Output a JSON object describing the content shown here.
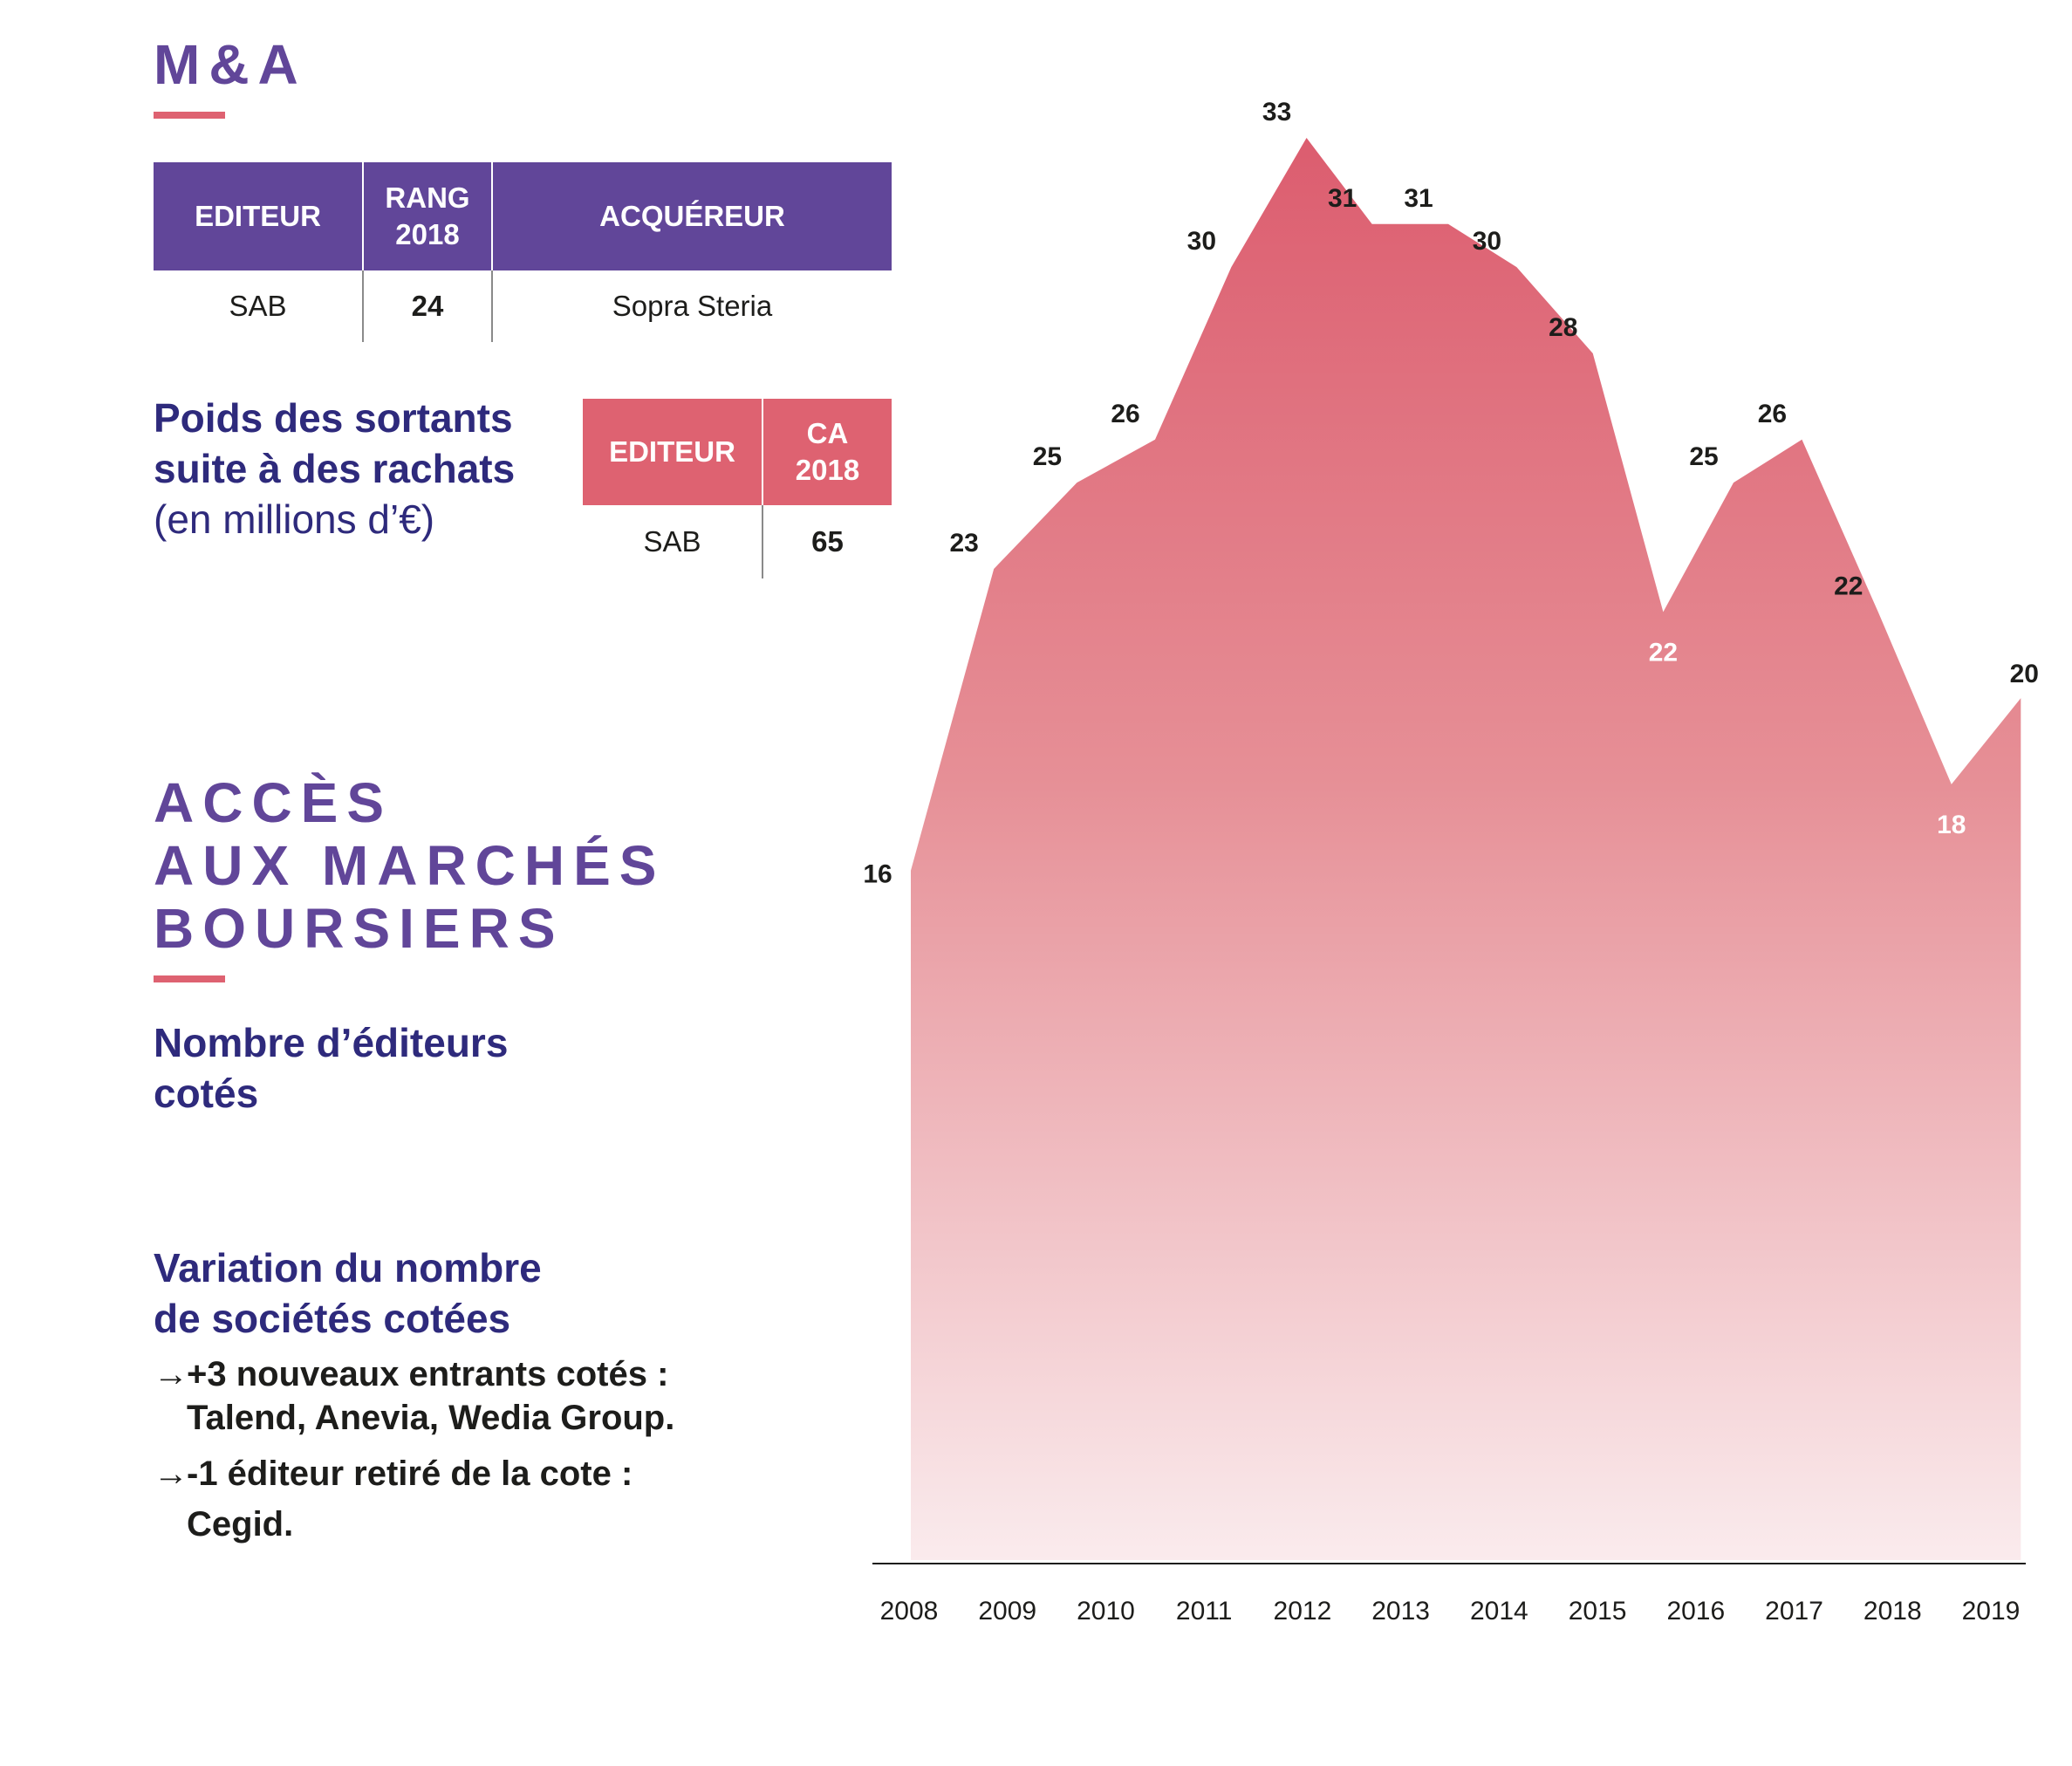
{
  "ma": {
    "title": "M&A",
    "table": {
      "headers": [
        "EDITEUR",
        "RANG 2018",
        "ACQUÉREUR"
      ],
      "row": [
        "SAB",
        "24",
        "Sopra Steria"
      ]
    }
  },
  "poids": {
    "title_line1": "Poids des sortants",
    "title_line2": "suite à des rachats",
    "unit": "(en millions d’€)",
    "table": {
      "headers": [
        "EDITEUR",
        "CA 2018"
      ],
      "row": [
        "SAB",
        "65"
      ]
    }
  },
  "acces": {
    "title_line1": "ACCÈS",
    "title_line2": "AUX MARCHÉS",
    "title_line3": "BOURSIERS",
    "subtitle_line1": "Nombre d’éditeurs",
    "subtitle_line2": "cotés"
  },
  "variation": {
    "title_line1": "Variation du nombre",
    "title_line2": "de sociétés cotées",
    "bullets": [
      {
        "arrow": "→",
        "line1": "+3 nouveaux entrants cotés :",
        "line2": "Talend, Anevia, Wedia Group."
      },
      {
        "arrow": "→",
        "line1": "-1 éditeur retiré de la cote :",
        "line2": "Cegid."
      }
    ]
  },
  "chart_data": {
    "type": "area",
    "categories": [
      "2008",
      "2009",
      "2010",
      "2011",
      "2012",
      "2013",
      "2014",
      "2015",
      "2016",
      "2017",
      "2018",
      "2019"
    ],
    "x": [
      0,
      0.85,
      1.7,
      2.5,
      3.28,
      4.05,
      4.72,
      5.5,
      6.2,
      6.98,
      7.7,
      8.42,
      9.12,
      9.9,
      10.65,
      11.36
    ],
    "values": [
      16,
      23,
      25,
      26,
      30,
      33,
      31,
      31,
      30,
      28,
      22,
      25,
      26,
      22,
      18,
      20
    ],
    "labels": [
      "16",
      "23",
      "25",
      "26",
      "30",
      "33",
      "31",
      "31",
      "30",
      "28",
      "22",
      "25",
      "26",
      "22",
      "18",
      "20"
    ],
    "ylim": [
      0,
      33
    ],
    "colors": {
      "top": "#dc5d6f",
      "bottom": "#faebed",
      "axis": "#1d1d1b",
      "label": "#1d1d1b",
      "label_inside": "#ffffff"
    }
  }
}
